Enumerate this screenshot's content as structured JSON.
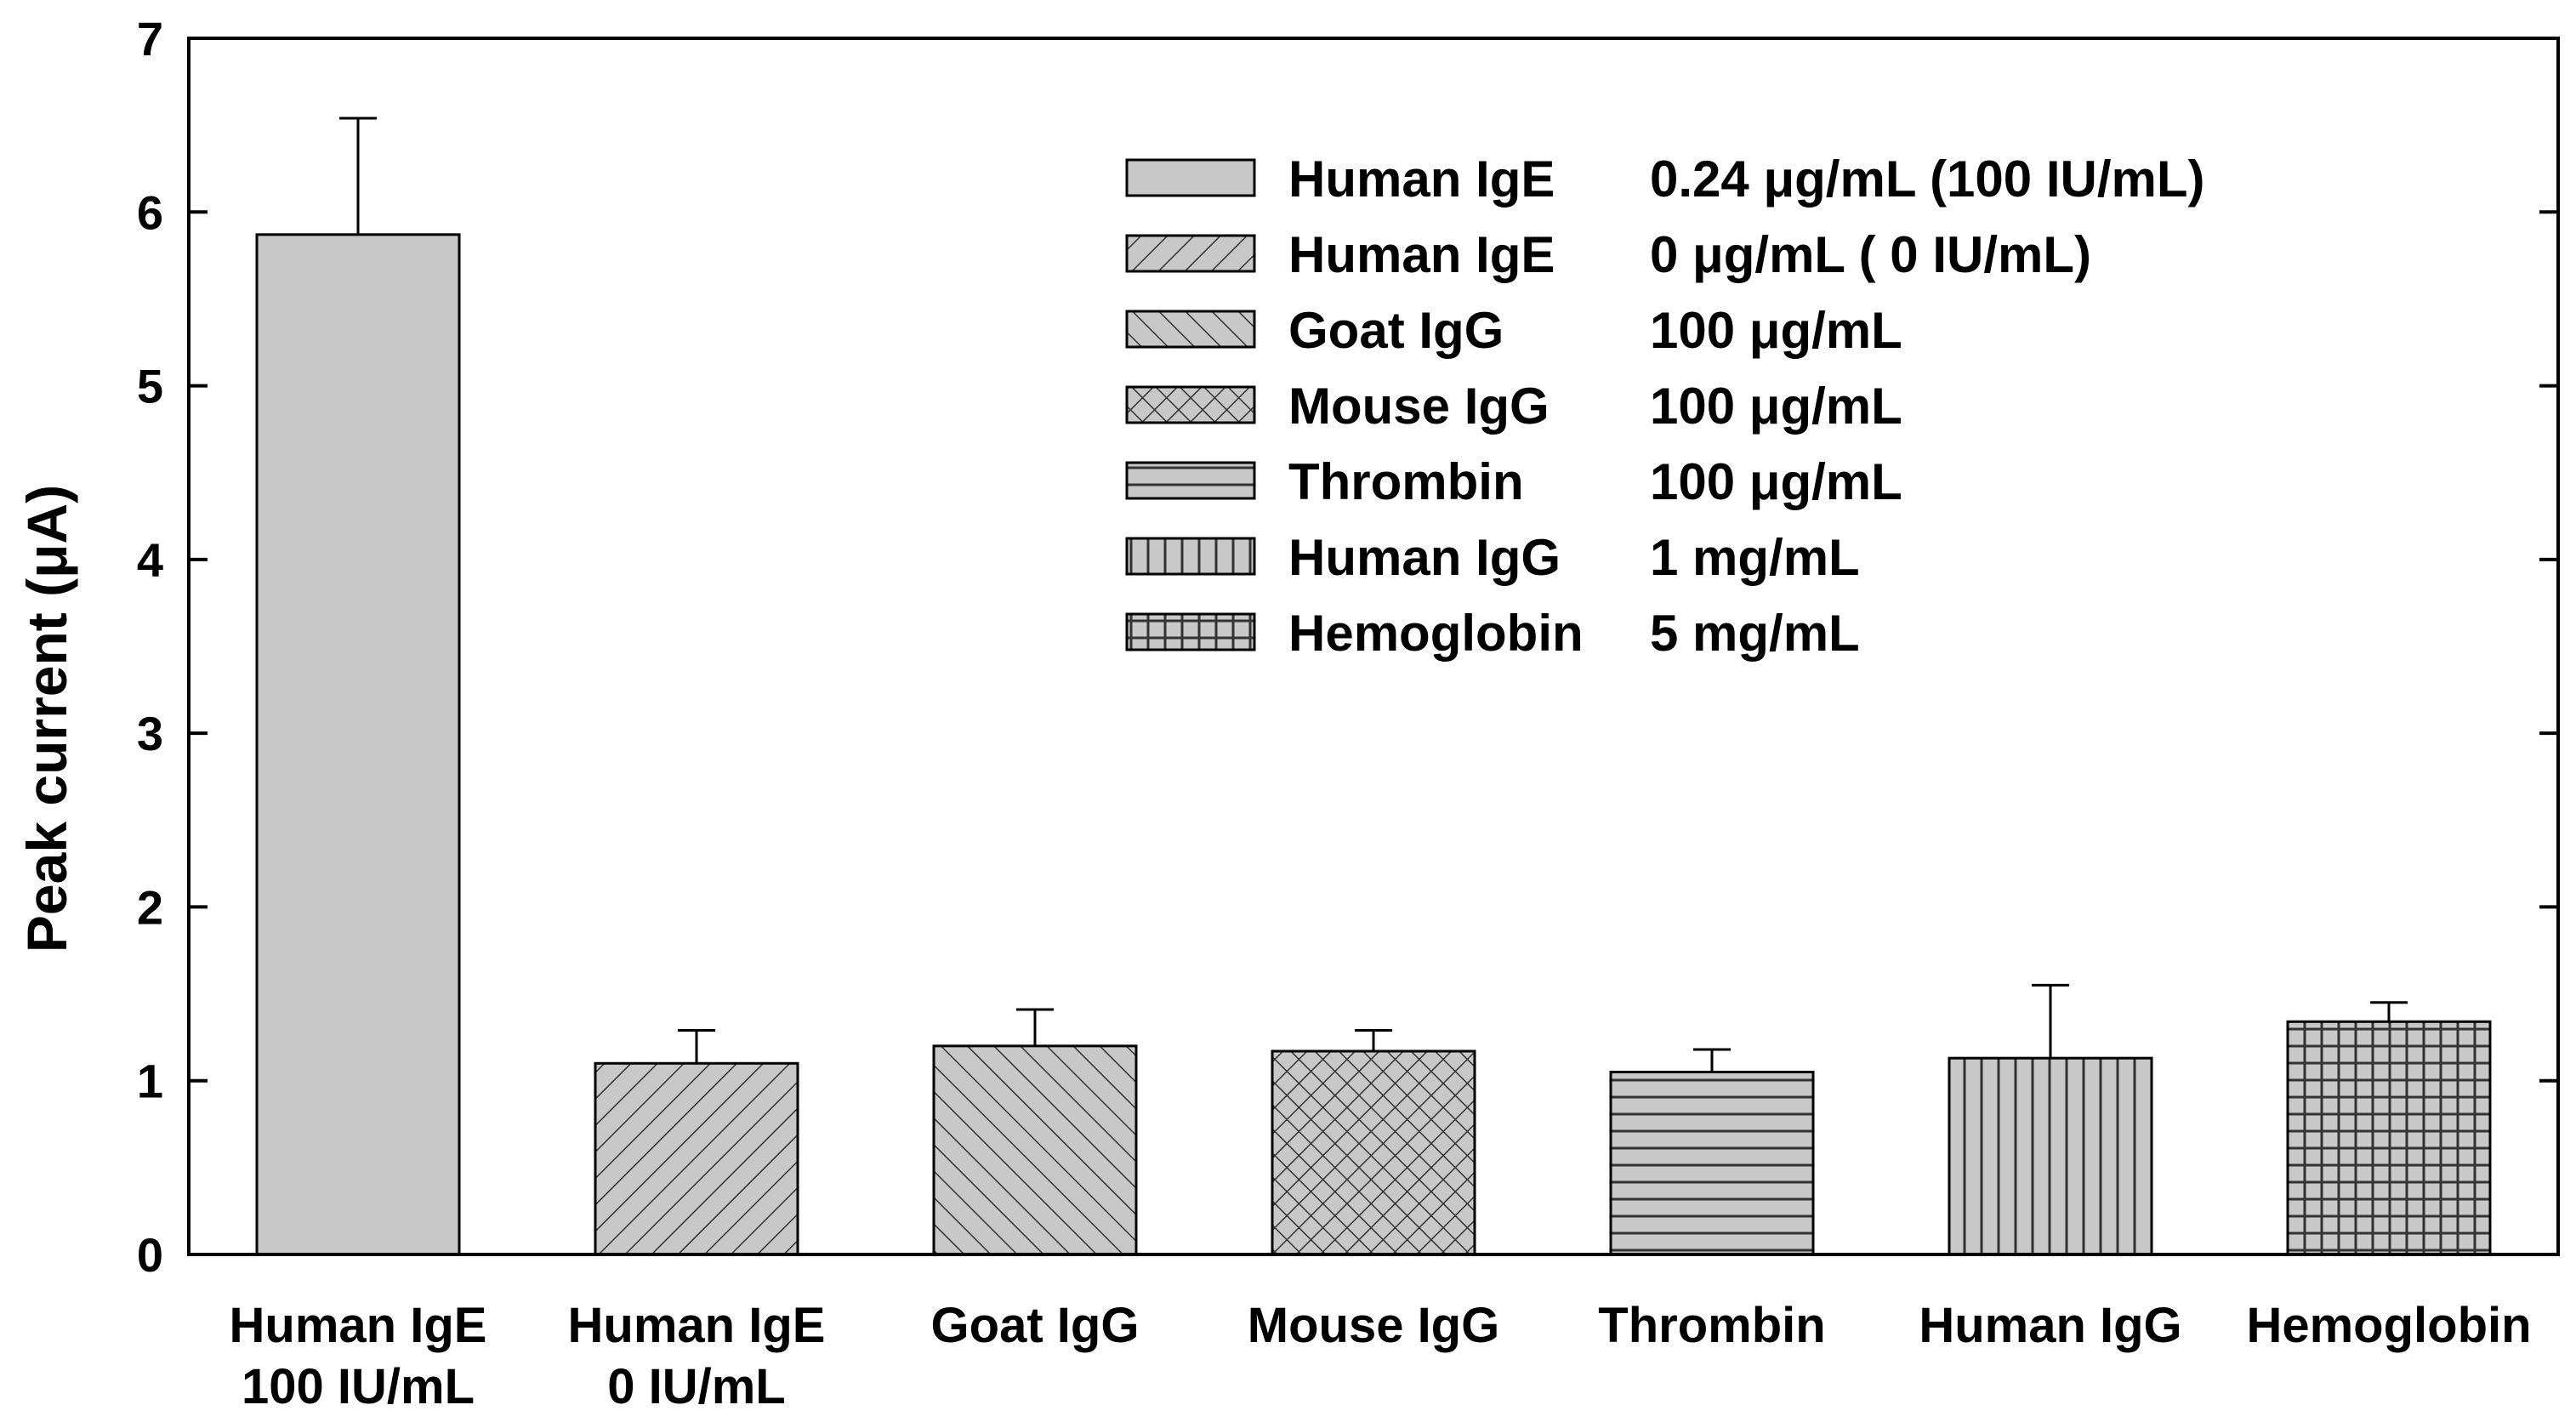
{
  "chart_data": {
    "type": "bar",
    "ylabel": "Peak current (μA)",
    "xlabel": "",
    "ylim": [
      0,
      7
    ],
    "yticks": [
      0,
      1,
      2,
      3,
      4,
      5,
      6,
      7
    ],
    "grid": false,
    "legend_position": "top-right",
    "bar_color": "#c8c8c8",
    "categories": [
      {
        "line1": "Human IgE",
        "line2": "100 IU/mL"
      },
      {
        "line1": "Human IgE",
        "line2": "0 IU/mL"
      },
      {
        "line1": "Goat IgG",
        "line2": ""
      },
      {
        "line1": "Mouse IgG",
        "line2": ""
      },
      {
        "line1": "Thrombin",
        "line2": ""
      },
      {
        "line1": "Human IgG",
        "line2": ""
      },
      {
        "line1": "Hemoglobin",
        "line2": ""
      }
    ],
    "values": [
      5.87,
      1.1,
      1.2,
      1.17,
      1.05,
      1.13,
      1.34
    ],
    "errors": [
      0.67,
      0.19,
      0.21,
      0.12,
      0.13,
      0.42,
      0.11
    ],
    "patterns": [
      "solid",
      "diag-fwd",
      "diag-back",
      "crosshatch",
      "horizontal",
      "vertical",
      "grid"
    ],
    "legend": [
      {
        "name": "Human IgE",
        "conc": "0.24 μg/mL (100 IU/mL)",
        "pattern": "solid"
      },
      {
        "name": "Human IgE",
        "conc": "0  μg/mL   (   0 IU/mL)",
        "pattern": "diag-fwd"
      },
      {
        "name": "Goat    IgG",
        "conc": "100 μg/mL",
        "pattern": "diag-back"
      },
      {
        "name": "Mouse IgG",
        "conc": "100 μg/mL",
        "pattern": "crosshatch"
      },
      {
        "name": "Thrombin",
        "conc": "100 μg/mL",
        "pattern": "horizontal"
      },
      {
        "name": "Human IgG",
        "conc": "1 mg/mL",
        "pattern": "vertical"
      },
      {
        "name": "Hemoglobin",
        "conc": "5 mg/mL",
        "pattern": "grid"
      }
    ]
  }
}
